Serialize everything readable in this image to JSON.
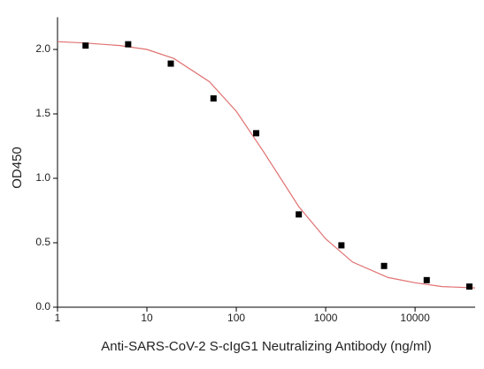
{
  "chart_data": {
    "type": "scatter",
    "x_label": "Anti-SARS-CoV-2 S-cIgG1 Neutralizing Antibody (ng/ml)",
    "y_label": "OD450",
    "x_log": true,
    "xlim": [
      1,
      47000
    ],
    "xticks": [
      1,
      10,
      100,
      1000,
      10000
    ],
    "ylim": [
      0,
      2.25
    ],
    "yticks": [
      {
        "value": 0,
        "label": "0.0"
      },
      {
        "value": 0.5,
        "label": "0.5"
      },
      {
        "value": 1,
        "label": "1.0"
      },
      {
        "value": 1.5,
        "label": "1.5"
      },
      {
        "value": 2,
        "label": "2.0"
      }
    ],
    "series": [
      {
        "color": "#000000",
        "x": [
          2.06,
          6.17,
          18.5,
          55.6,
          167,
          500,
          1500,
          4500,
          13500,
          40500
        ],
        "values": [
          2.03,
          2.04,
          1.89,
          1.62,
          1.35,
          0.72,
          0.48,
          0.32,
          0.21,
          0.16
        ]
      }
    ],
    "fit": {
      "color": "#e07070",
      "x": [
        1,
        2,
        5,
        10,
        20,
        50,
        100,
        200,
        500,
        1000,
        2000,
        5000,
        10000,
        20000,
        47000
      ],
      "values": [
        2.06,
        2.05,
        2.03,
        2.0,
        1.93,
        1.75,
        1.52,
        1.21,
        0.78,
        0.53,
        0.35,
        0.23,
        0.19,
        0.16,
        0.15
      ]
    }
  }
}
